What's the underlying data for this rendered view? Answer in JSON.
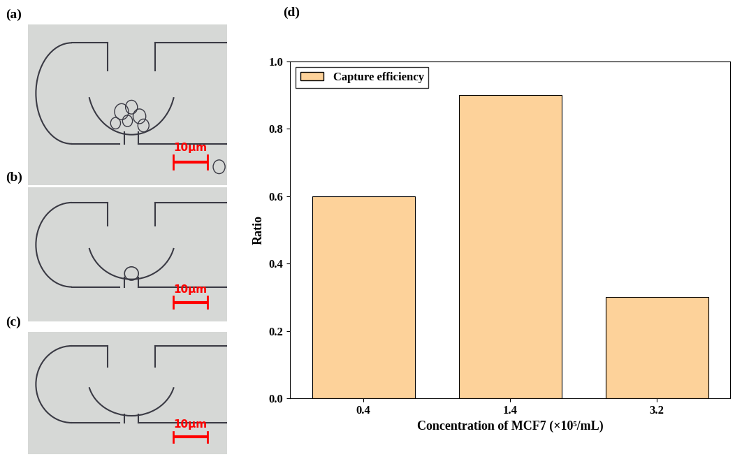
{
  "chart_data": {
    "type": "bar",
    "panel_label": "(d)",
    "x_label": "Concentration of MCF7 (×10⁵/mL)",
    "y_label": "Ratio",
    "categories": [
      "0.4",
      "1.4",
      "3.2"
    ],
    "series": [
      {
        "name": "Capture efficiency",
        "color": "#fdd29a",
        "values": [
          0.6,
          0.9,
          0.3
        ]
      }
    ],
    "ylim": [
      0,
      1.0
    ],
    "yticks": [
      {
        "value": 0,
        "label": "0.0"
      },
      {
        "value": 0.2,
        "label": "0.2"
      },
      {
        "value": 0.4,
        "label": "0.4"
      },
      {
        "value": 0.6,
        "label": "0.6"
      },
      {
        "value": 0.8,
        "label": "0.8"
      },
      {
        "value": 1.0,
        "label": "1.0"
      }
    ],
    "legend": "upper left"
  },
  "panels": [
    {
      "label": "(a)",
      "scale_bar": "10μm"
    },
    {
      "label": "(b)",
      "scale_bar": "10μm"
    },
    {
      "label": "(c)",
      "scale_bar": "10μm"
    }
  ]
}
